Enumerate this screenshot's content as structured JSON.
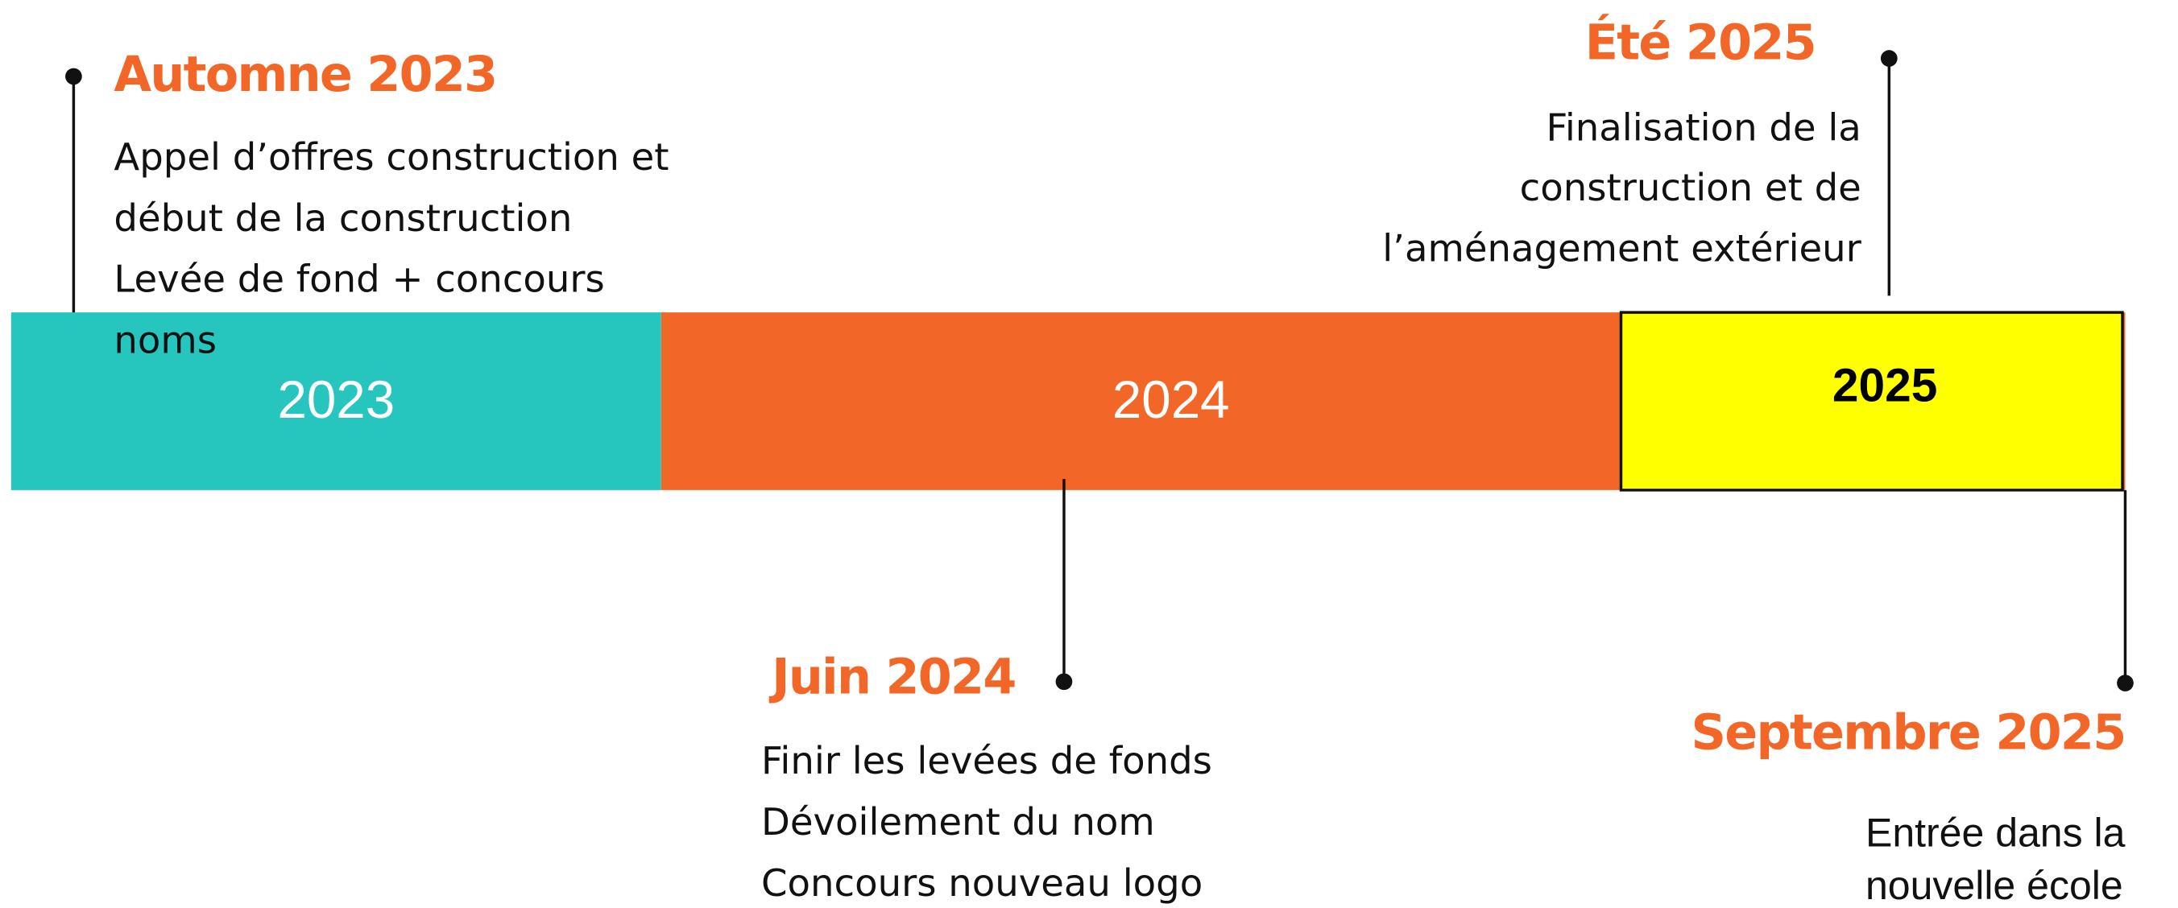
{
  "years": [
    "2023",
    "2024",
    "2025"
  ],
  "events": [
    {
      "title": "Automne 2023",
      "lines": [
        "Appel d’offres construction et",
        "début de la construction",
        "Levée de fond + concours",
        "noms"
      ]
    },
    {
      "title": "Juin 2024",
      "lines": [
        "Finir les levées de fonds",
        "Dévoilement du nom",
        "Concours nouveau logo"
      ]
    },
    {
      "title": "Été 2025",
      "lines": [
        "Finalisation de la",
        "construction et de",
        "l’aménagement extérieur"
      ]
    },
    {
      "title": "Septembre 2025",
      "lines": [
        "Entrée dans la",
        "nouvelle école"
      ]
    }
  ]
}
